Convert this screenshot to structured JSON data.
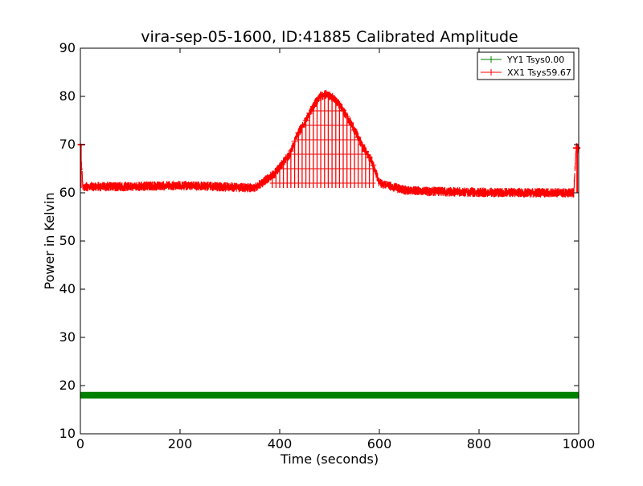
{
  "chart_data": {
    "type": "line",
    "title": "vira-sep-05-1600, ID:41885 Calibrated Amplitude",
    "xlabel": "Time (seconds)",
    "ylabel": "Power in Kelvin",
    "xlim": [
      0,
      1000
    ],
    "ylim": [
      10,
      90
    ],
    "xticks": [
      "0",
      "200",
      "400",
      "600",
      "800",
      "1000"
    ],
    "yticks": [
      "10",
      "20",
      "30",
      "40",
      "50",
      "60",
      "70",
      "80",
      "90"
    ],
    "grid": false,
    "legend_position": "top-right",
    "series": [
      {
        "name": "YY1 Tsys0.00",
        "color": "#008000",
        "marker": "+",
        "x": [
          0,
          100,
          200,
          300,
          400,
          500,
          600,
          700,
          800,
          900,
          1000
        ],
        "y": [
          18,
          18,
          18,
          18,
          18,
          18,
          18,
          18,
          18,
          18,
          18
        ]
      },
      {
        "name": "XX1 Tsys59.67",
        "color": "#ff0000",
        "marker": "+",
        "x": [
          0,
          5,
          20,
          100,
          200,
          300,
          350,
          390,
          405,
          420,
          435,
          450,
          465,
          480,
          495,
          510,
          525,
          540,
          555,
          570,
          585,
          600,
          650,
          700,
          800,
          900,
          990,
          995,
          1000
        ],
        "y": [
          70,
          61.2,
          61.3,
          61.3,
          61.5,
          61.2,
          61,
          64,
          66,
          68,
          72,
          74.5,
          77.5,
          80,
          80.5,
          79.5,
          77.5,
          75,
          72,
          69,
          66.5,
          62,
          60.6,
          60.3,
          60.1,
          60,
          60,
          69.5,
          69
        ]
      }
    ]
  }
}
